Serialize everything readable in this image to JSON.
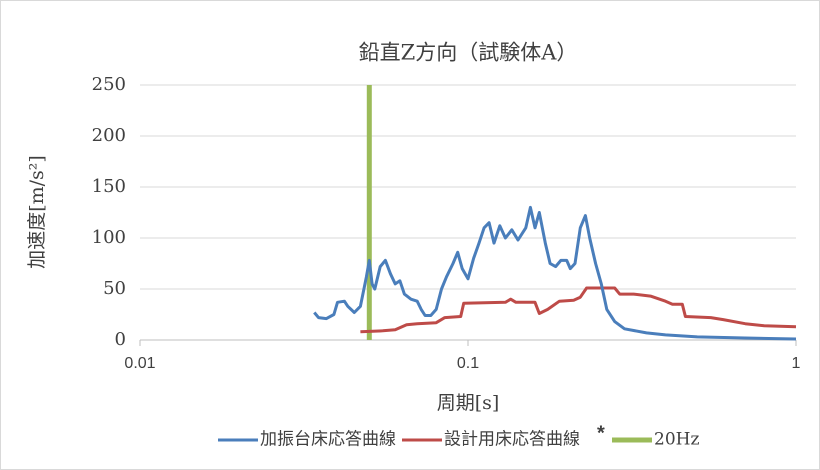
{
  "chart_data": {
    "type": "line",
    "title": "鉛直Z方向（試験体A）",
    "xlabel": "周期[s]",
    "ylabel": "加速度[m/s²]",
    "xscale": "log",
    "xlim": [
      0.01,
      1
    ],
    "xticks": [
      0.01,
      0.1,
      1
    ],
    "ylim": [
      0,
      250
    ],
    "yticks": [
      0,
      50,
      100,
      150,
      200,
      250
    ],
    "grid": true,
    "legend": "bottom",
    "annotations": [
      "*"
    ],
    "series": [
      {
        "name": "加振台床応答曲線",
        "color": "#4a7ebb",
        "x": [
          0.034,
          0.035,
          0.037,
          0.039,
          0.04,
          0.042,
          0.043,
          0.045,
          0.047,
          0.049,
          0.05,
          0.051,
          0.052,
          0.054,
          0.056,
          0.058,
          0.06,
          0.062,
          0.064,
          0.067,
          0.07,
          0.072,
          0.074,
          0.077,
          0.08,
          0.083,
          0.086,
          0.09,
          0.093,
          0.096,
          0.1,
          0.104,
          0.108,
          0.112,
          0.116,
          0.12,
          0.125,
          0.13,
          0.136,
          0.142,
          0.15,
          0.155,
          0.16,
          0.165,
          0.172,
          0.178,
          0.185,
          0.192,
          0.2,
          0.205,
          0.212,
          0.22,
          0.228,
          0.235,
          0.245,
          0.255,
          0.265,
          0.28,
          0.3,
          0.35,
          0.4,
          0.5,
          0.7,
          1.0
        ],
        "values": [
          27,
          22,
          21,
          25,
          37,
          38,
          33,
          27,
          33,
          62,
          78,
          55,
          50,
          72,
          78,
          65,
          55,
          58,
          45,
          40,
          38,
          30,
          24,
          24,
          30,
          50,
          62,
          75,
          86,
          70,
          60,
          80,
          95,
          110,
          115,
          95,
          112,
          100,
          108,
          98,
          110,
          130,
          110,
          125,
          95,
          75,
          72,
          78,
          78,
          70,
          75,
          110,
          122,
          100,
          75,
          55,
          30,
          18,
          11,
          7,
          5,
          3,
          2,
          1
        ]
      },
      {
        "name": "設計用床応答曲線",
        "color": "#be4b48",
        "x": [
          0.047,
          0.055,
          0.06,
          0.065,
          0.07,
          0.08,
          0.085,
          0.095,
          0.097,
          0.13,
          0.135,
          0.14,
          0.16,
          0.165,
          0.175,
          0.19,
          0.21,
          0.22,
          0.23,
          0.28,
          0.29,
          0.32,
          0.36,
          0.4,
          0.42,
          0.45,
          0.46,
          0.55,
          0.6,
          0.7,
          0.8,
          1.0
        ],
        "values": [
          8,
          9,
          10,
          15,
          16,
          17,
          22,
          23,
          36,
          37,
          40,
          37,
          37,
          26,
          30,
          38,
          39,
          42,
          51,
          51,
          45,
          45,
          43,
          38,
          35,
          35,
          23,
          22,
          20,
          16,
          14,
          13
        ]
      },
      {
        "name": "20Hz",
        "color": "#9bbb59",
        "x": [
          0.05,
          0.05
        ],
        "values": [
          0,
          250
        ]
      }
    ]
  }
}
